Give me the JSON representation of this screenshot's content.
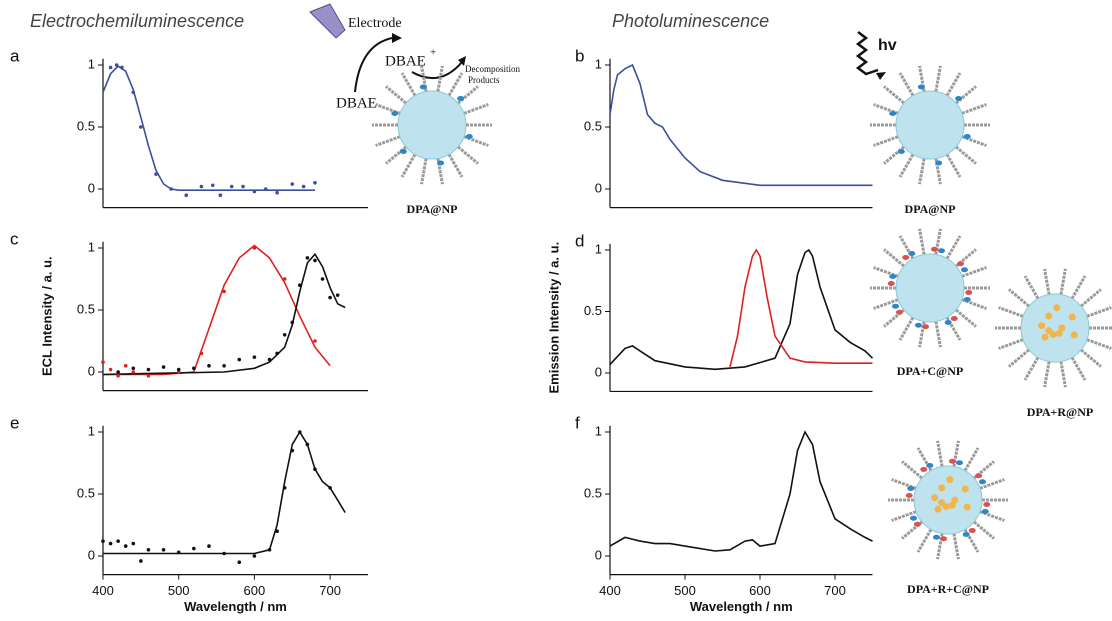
{
  "headings": [
    "Electrochemiluminescence",
    "Photoluminescence"
  ],
  "scheme": {
    "electrode": "Electrode",
    "reactant": "DBAE",
    "product": "DBAE",
    "product_charge": "+",
    "decomposition": [
      "Decomposition",
      "Products"
    ],
    "light": "hv"
  },
  "particles": [
    "DPA@NP",
    "DPA+C@NP",
    "DPA+R@NP",
    "DPA+R+C@NP"
  ],
  "chart_data": [
    {
      "type": "line",
      "panel": "a",
      "xlim": [
        400,
        750
      ],
      "ylim": [
        -0.15,
        1.05
      ],
      "yticks": [
        0,
        0.5,
        1
      ],
      "series": [
        {
          "style": "line",
          "color": "#3a4fa0",
          "x": [
            400,
            410,
            420,
            430,
            440,
            450,
            460,
            470,
            480,
            490,
            500,
            520,
            560,
            600,
            640,
            680
          ],
          "values": [
            0.78,
            0.93,
            0.99,
            0.95,
            0.8,
            0.58,
            0.35,
            0.15,
            0.04,
            0.0,
            -0.01,
            -0.01,
            -0.01,
            -0.01,
            -0.01,
            -0.01
          ]
        },
        {
          "style": "points",
          "color": "#3a4fa0",
          "x": [
            410,
            418,
            425,
            440,
            450,
            470,
            490,
            510,
            530,
            545,
            555,
            570,
            585,
            600,
            615,
            630,
            650,
            665,
            680
          ],
          "values": [
            0.98,
            1.0,
            0.98,
            0.78,
            0.5,
            0.12,
            0.0,
            -0.05,
            0.02,
            0.03,
            -0.05,
            0.02,
            0.02,
            -0.02,
            0.0,
            -0.03,
            0.04,
            0.02,
            0.05
          ]
        }
      ]
    },
    {
      "type": "line",
      "panel": "b",
      "xlim": [
        400,
        750
      ],
      "ylim": [
        -0.15,
        1.05
      ],
      "yticks": [
        0,
        0.5,
        1
      ],
      "series": [
        {
          "style": "line",
          "color": "#3a4fa0",
          "x": [
            400,
            405,
            410,
            420,
            430,
            440,
            450,
            460,
            470,
            480,
            500,
            520,
            550,
            600,
            650,
            700,
            750
          ],
          "values": [
            0.6,
            0.8,
            0.92,
            0.97,
            1.0,
            0.85,
            0.6,
            0.53,
            0.5,
            0.4,
            0.25,
            0.14,
            0.07,
            0.03,
            0.03,
            0.03,
            0.03
          ]
        }
      ]
    },
    {
      "type": "line",
      "panel": "c",
      "xlim": [
        400,
        750
      ],
      "ylim": [
        -0.15,
        1.05
      ],
      "yticks": [
        0,
        0.5,
        1
      ],
      "ylabel": "ECL Intensity / a. u.",
      "series": [
        {
          "style": "line",
          "color": "#e02020",
          "x": [
            400,
            440,
            480,
            520,
            540,
            560,
            580,
            600,
            620,
            640,
            660,
            680,
            700
          ],
          "values": [
            -0.02,
            -0.02,
            -0.02,
            0.0,
            0.35,
            0.7,
            0.92,
            1.02,
            0.92,
            0.72,
            0.45,
            0.2,
            0.05
          ]
        },
        {
          "style": "line",
          "color": "#111111",
          "x": [
            400,
            480,
            560,
            600,
            620,
            640,
            650,
            660,
            670,
            680,
            690,
            700,
            710,
            720
          ],
          "values": [
            -0.02,
            -0.01,
            0.0,
            0.03,
            0.08,
            0.2,
            0.38,
            0.65,
            0.88,
            0.95,
            0.85,
            0.68,
            0.55,
            0.52
          ]
        },
        {
          "style": "points",
          "color": "#e02020",
          "x": [
            400,
            410,
            420,
            430,
            440,
            460,
            500,
            530,
            560,
            600,
            640,
            680
          ],
          "values": [
            0.08,
            0.02,
            -0.03,
            0.05,
            0.0,
            -0.03,
            0.0,
            0.15,
            0.65,
            1.0,
            0.75,
            0.25
          ]
        },
        {
          "style": "points",
          "color": "#111111",
          "x": [
            420,
            440,
            460,
            480,
            500,
            520,
            540,
            560,
            580,
            600,
            620,
            630,
            640,
            650,
            660,
            670,
            680,
            690,
            700,
            710
          ],
          "values": [
            0.0,
            0.03,
            0.02,
            0.04,
            0.02,
            0.03,
            0.05,
            0.05,
            0.1,
            0.12,
            0.1,
            0.15,
            0.3,
            0.4,
            0.7,
            0.92,
            0.9,
            0.75,
            0.6,
            0.62
          ]
        }
      ]
    },
    {
      "type": "line",
      "panel": "d",
      "xlim": [
        400,
        750
      ],
      "ylim": [
        -0.15,
        1.05
      ],
      "yticks": [
        0,
        0.5,
        1
      ],
      "ylabel": "Emission Intensity / a. u.",
      "series": [
        {
          "style": "line",
          "color": "#111111",
          "x": [
            400,
            420,
            430,
            440,
            460,
            500,
            540,
            580,
            620,
            640,
            650,
            660,
            665,
            670,
            680,
            700,
            720,
            740,
            750
          ],
          "values": [
            0.07,
            0.2,
            0.22,
            0.18,
            0.1,
            0.05,
            0.03,
            0.05,
            0.12,
            0.4,
            0.8,
            0.98,
            1.0,
            0.95,
            0.7,
            0.35,
            0.25,
            0.18,
            0.12
          ]
        },
        {
          "style": "line",
          "color": "#e02020",
          "x": [
            560,
            570,
            580,
            590,
            595,
            600,
            610,
            620,
            640,
            660,
            700,
            750
          ],
          "values": [
            0.05,
            0.3,
            0.7,
            0.95,
            1.0,
            0.95,
            0.6,
            0.3,
            0.12,
            0.09,
            0.08,
            0.08
          ]
        }
      ]
    },
    {
      "type": "line",
      "panel": "e",
      "xlim": [
        400,
        750
      ],
      "ylim": [
        -0.15,
        1.05
      ],
      "yticks": [
        0,
        0.5,
        1
      ],
      "xticks": [
        400,
        500,
        600,
        700
      ],
      "xlabel": "Wavelength / nm",
      "series": [
        {
          "style": "line",
          "color": "#111111",
          "x": [
            400,
            500,
            600,
            620,
            630,
            640,
            650,
            660,
            670,
            680,
            690,
            700,
            710,
            720
          ],
          "values": [
            0.02,
            0.02,
            0.02,
            0.05,
            0.25,
            0.6,
            0.9,
            1.0,
            0.9,
            0.7,
            0.6,
            0.55,
            0.45,
            0.35
          ]
        },
        {
          "style": "points",
          "color": "#111111",
          "x": [
            400,
            410,
            420,
            430,
            440,
            450,
            460,
            480,
            500,
            520,
            540,
            560,
            580,
            600,
            620,
            630,
            640,
            650,
            660,
            670,
            680,
            700
          ],
          "values": [
            0.12,
            0.1,
            0.12,
            0.08,
            0.1,
            -0.04,
            0.05,
            0.05,
            0.03,
            0.06,
            0.08,
            0.02,
            -0.05,
            0.0,
            0.05,
            0.2,
            0.55,
            0.85,
            1.0,
            0.9,
            0.7,
            0.55
          ]
        }
      ]
    },
    {
      "type": "line",
      "panel": "f",
      "xlim": [
        400,
        750
      ],
      "ylim": [
        -0.15,
        1.05
      ],
      "yticks": [
        0,
        0.5,
        1
      ],
      "xticks": [
        400,
        500,
        600,
        700
      ],
      "xlabel": "Wavelength / nm",
      "series": [
        {
          "style": "line",
          "color": "#111111",
          "x": [
            400,
            420,
            440,
            460,
            480,
            500,
            540,
            560,
            580,
            590,
            600,
            620,
            640,
            650,
            660,
            670,
            680,
            700,
            720,
            740,
            750
          ],
          "values": [
            0.08,
            0.15,
            0.12,
            0.1,
            0.1,
            0.08,
            0.04,
            0.05,
            0.12,
            0.13,
            0.08,
            0.1,
            0.5,
            0.85,
            1.0,
            0.9,
            0.6,
            0.3,
            0.22,
            0.15,
            0.12
          ]
        }
      ]
    }
  ]
}
